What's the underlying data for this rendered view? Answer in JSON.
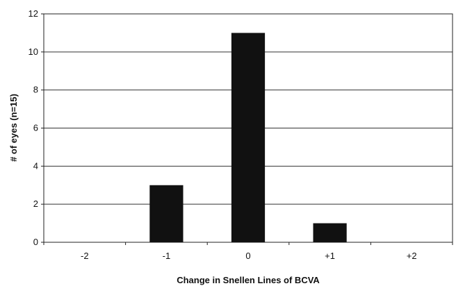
{
  "chart_data": {
    "type": "bar",
    "title": "",
    "xlabel": "Change in Snellen Lines of BCVA",
    "ylabel": "# of eyes (n=15)",
    "categories": [
      "-2",
      "-1",
      "0",
      "+1",
      "+2"
    ],
    "values": [
      0,
      3,
      11,
      1,
      0
    ],
    "ylim": [
      0,
      12
    ],
    "yticks": [
      "0",
      "2",
      "4",
      "6",
      "8",
      "10",
      "12"
    ],
    "grid": true,
    "legend": "none",
    "bar_color": "#111111"
  }
}
